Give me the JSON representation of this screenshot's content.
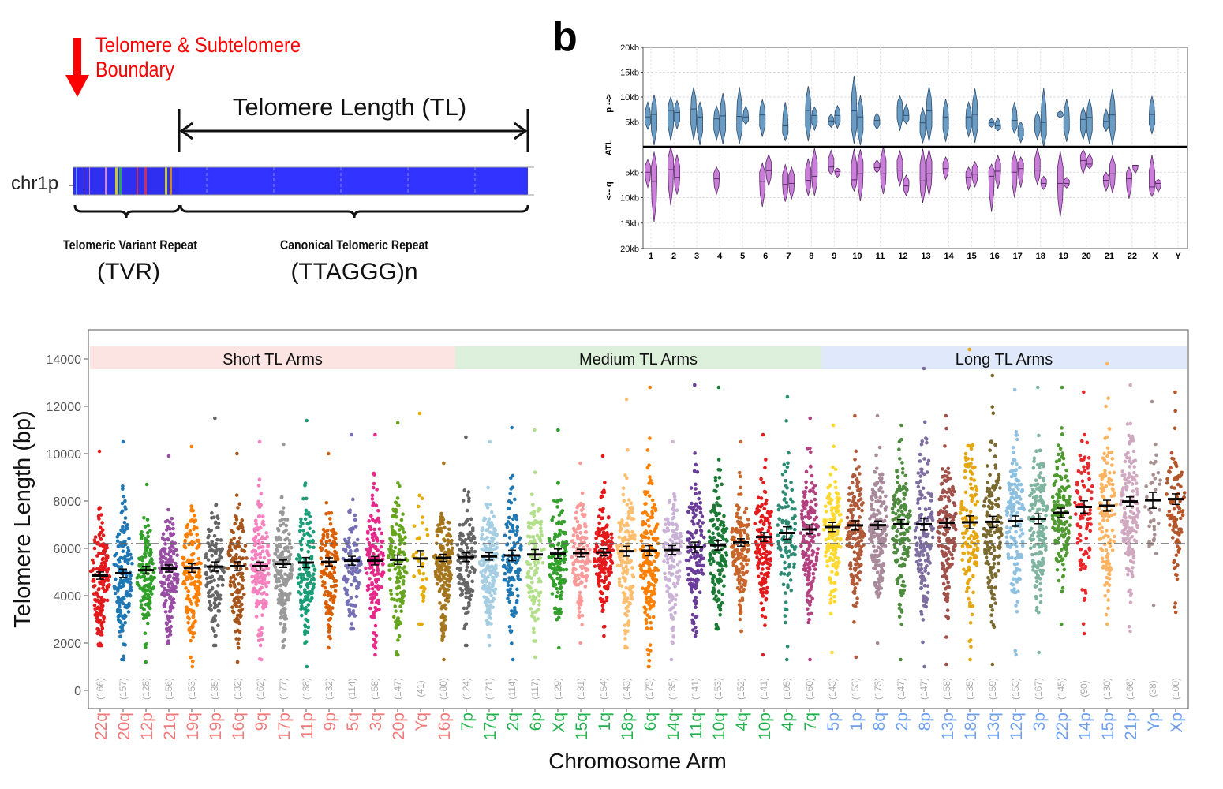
{
  "panel_a": {
    "boundary_label_line1": "Telomere & Subtelomere",
    "boundary_label_line2": "Boundary",
    "tl_label": "Telomere Length (TL)",
    "chrom_label": "chr1p",
    "tvr_label": "Telomeric Variant Repeat",
    "tvr_abbrev": "(TVR)",
    "canonical_label": "Canonical Telomeric Repeat",
    "canonical_abbrev": "(TTAGGG)n",
    "colors": {
      "canonical": "#3333ff",
      "arrow": "#ff0000"
    }
  },
  "panel_b_letter": "b",
  "chart_data": [
    {
      "type": "violin",
      "ylabel_top": "p -->",
      "ylabel_mid": "ATL",
      "ylabel_bottom": "<-- q",
      "yticks_top": [
        "20kb",
        "15kb",
        "10kb",
        "5kb"
      ],
      "yticks_bottom": [
        "5kb",
        "10kb",
        "15kb",
        "20kb"
      ],
      "ylim_kb": [
        0,
        20
      ],
      "grid": true,
      "colors": {
        "p": "#6a9bc3",
        "q": "#c97fd8"
      },
      "chromosomes": [
        {
          "chr": "1",
          "p": [
            [
              3.5,
              9,
              6
            ],
            [
              0.3,
              10.5,
              6.5
            ]
          ],
          "q": [
            [
              2.5,
              8,
              5
            ],
            [
              1,
              14.8,
              6.8
            ]
          ]
        },
        {
          "chr": "2",
          "p": [
            [
              1.2,
              10,
              7.3
            ],
            [
              3.6,
              9.3,
              6.9
            ]
          ],
          "q": [
            [
              0,
              11.5,
              4.5
            ],
            [
              1.5,
              9.4,
              6
            ]
          ]
        },
        {
          "chr": "3",
          "p": [
            [
              1.3,
              12,
              7.6
            ],
            [
              0.3,
              9,
              6
            ]
          ],
          "q": []
        },
        {
          "chr": "4",
          "p": [
            [
              1.3,
              8.2,
              5.6
            ],
            [
              0.5,
              10.8,
              6.2
            ]
          ],
          "q": [
            [
              4,
              9.3,
              6.3
            ]
          ]
        },
        {
          "chr": "5",
          "p": [
            [
              0.6,
              12,
              6.1
            ],
            [
              4.5,
              8.2,
              6
            ]
          ],
          "q": []
        },
        {
          "chr": "6",
          "p": [
            [
              2,
              9.5,
              6.4
            ]
          ],
          "q": [
            [
              3.2,
              11.8,
              6.8
            ],
            [
              1.5,
              7.7,
              4.7
            ]
          ]
        },
        {
          "chr": "7",
          "p": [
            [
              1.2,
              9,
              4.2
            ]
          ],
          "q": [
            [
              3.5,
              10.8,
              7.4
            ],
            [
              4,
              10.2,
              7.2
            ]
          ]
        },
        {
          "chr": "8",
          "p": [
            [
              1.1,
              12.2,
              7.3
            ],
            [
              3.3,
              8,
              6.3
            ]
          ],
          "q": [
            [
              2.3,
              9.6,
              6.6
            ],
            [
              0.3,
              9.6,
              5.8
            ]
          ]
        },
        {
          "chr": "9",
          "p": [
            [
              3.9,
              6.6,
              5.2
            ],
            [
              3.7,
              8.3,
              6.3
            ]
          ],
          "q": [
            [
              0.7,
              5.5,
              4
            ],
            [
              4.2,
              6,
              4.9
            ]
          ]
        },
        {
          "chr": "10",
          "p": [
            [
              0.6,
              14.3,
              7.2
            ],
            [
              0.3,
              10.3,
              6
            ]
          ],
          "q": [
            [
              0.4,
              8.7,
              6.5
            ],
            [
              0.5,
              10.7,
              5.3
            ]
          ]
        },
        {
          "chr": "11",
          "p": [
            [
              3.5,
              6.8,
              5.3
            ]
          ],
          "q": [
            [
              2.6,
              5.1,
              4.1
            ],
            [
              0,
              9.3,
              5.3
            ]
          ]
        },
        {
          "chr": "12",
          "p": [
            [
              3.2,
              10.2,
              8
            ],
            [
              4.6,
              8.5,
              6.3
            ]
          ],
          "q": [
            [
              0.8,
              7.7,
              4.6
            ],
            [
              5.6,
              9.6,
              7.7
            ]
          ]
        },
        {
          "chr": "13",
          "p": [
            [
              0.8,
              7.8,
              4.8
            ],
            [
              1,
              12.2,
              7.2
            ]
          ],
          "q": [
            [
              0.4,
              11,
              6.7
            ],
            [
              0.5,
              9.6,
              5.3
            ]
          ]
        },
        {
          "chr": "14",
          "p": [
            [
              1,
              9.6,
              6
            ]
          ],
          "q": [
            [
              2,
              6.4,
              4.3
            ]
          ]
        },
        {
          "chr": "15",
          "p": [
            [
              2,
              9,
              6
            ],
            [
              0.8,
              11.7,
              6.5
            ]
          ],
          "q": [
            [
              4,
              8.5,
              6
            ],
            [
              2.9,
              7.9,
              5.4
            ]
          ]
        },
        {
          "chr": "16",
          "p": [
            [
              3.9,
              5.7,
              4.8
            ],
            [
              3.2,
              5.8,
              4.2
            ]
          ],
          "q": [
            [
              3.4,
              12.8,
              5.8
            ],
            [
              1.7,
              8.2,
              4.8
            ]
          ]
        },
        {
          "chr": "17",
          "p": [
            [
              2.7,
              9,
              5.3
            ],
            [
              0.8,
              5,
              3.6
            ]
          ],
          "q": [
            [
              1,
              10,
              5
            ],
            [
              2,
              8,
              4.3
            ]
          ]
        },
        {
          "chr": "18",
          "p": [
            [
              1.4,
              7,
              5
            ],
            [
              0,
              11.8,
              4.9
            ]
          ],
          "q": [
            [
              0.3,
              7.4,
              4.6
            ],
            [
              5.8,
              8.4,
              7.2
            ]
          ]
        },
        {
          "chr": "19",
          "p": [
            [
              5.8,
              7.2,
              6.6
            ],
            [
              1,
              9.6,
              5.8
            ]
          ],
          "q": [
            [
              0.9,
              13.8,
              7.2
            ],
            [
              6,
              8.1,
              7.2
            ]
          ]
        },
        {
          "chr": "20",
          "p": [
            [
              1.4,
              8,
              5.5
            ],
            [
              0.5,
              9.6,
              5.9
            ]
          ],
          "q": [
            [
              0.6,
              5.3,
              2.7
            ],
            [
              1.4,
              4.3,
              3.4
            ]
          ]
        },
        {
          "chr": "21",
          "p": [
            [
              3.1,
              7.6,
              5.1
            ],
            [
              0.3,
              11.6,
              6.4
            ]
          ],
          "q": [
            [
              5,
              8.7,
              6.6
            ],
            [
              1.8,
              9.1,
              5.3
            ]
          ]
        },
        {
          "chr": "22",
          "p": [],
          "q": [
            [
              4,
              10.2,
              6.3
            ],
            [
              3.6,
              5.2,
              3.7
            ]
          ]
        },
        {
          "chr": "X",
          "p": [
            [
              2.6,
              10.2,
              6.5
            ]
          ],
          "q": [
            [
              1.6,
              9.8,
              7.9
            ],
            [
              6.4,
              8.9,
              7.2
            ]
          ]
        },
        {
          "chr": "Y",
          "p": [],
          "q": []
        }
      ]
    },
    {
      "type": "scatter",
      "xlabel": "Chromosome Arm",
      "ylabel": "Telomere Length (bp)",
      "ylim": [
        -770,
        15230
      ],
      "yticks": [
        0,
        2000,
        4000,
        6000,
        8000,
        10000,
        12000,
        14000
      ],
      "reference_line": 6200,
      "grid": false,
      "groups": [
        {
          "name": "Short TL Arms",
          "color": "#fce4e2",
          "label_color": "#f07a7a"
        },
        {
          "name": "Medium TL Arms",
          "color": "#dcf0dc",
          "label_color": "#22b14c"
        },
        {
          "name": "Long TL Arms",
          "color": "#e0e8fb",
          "label_color": "#6fa0f0"
        }
      ],
      "arms": [
        {
          "arm": "22q",
          "n": 166,
          "mean": 4850,
          "min": 1900,
          "max": 10100,
          "color": "#e31a1c",
          "group": 0
        },
        {
          "arm": "20q",
          "n": 157,
          "mean": 4950,
          "min": 1300,
          "max": 10500,
          "color": "#1f78b4",
          "group": 0
        },
        {
          "arm": "12p",
          "n": 128,
          "mean": 5080,
          "min": 1200,
          "max": 8700,
          "color": "#33a02c",
          "group": 0
        },
        {
          "arm": "21q",
          "n": 156,
          "mean": 5150,
          "min": 2000,
          "max": 9900,
          "color": "#984ea3",
          "group": 0
        },
        {
          "arm": "19q",
          "n": 153,
          "mean": 5170,
          "min": 1000,
          "max": 10300,
          "color": "#ff7f00",
          "group": 0
        },
        {
          "arm": "19p",
          "n": 135,
          "mean": 5230,
          "min": 1900,
          "max": 11500,
          "color": "#666666",
          "group": 0
        },
        {
          "arm": "16q",
          "n": 132,
          "mean": 5250,
          "min": 1200,
          "max": 10000,
          "color": "#a6561c",
          "group": 0
        },
        {
          "arm": "9q",
          "n": 162,
          "mean": 5250,
          "min": 1300,
          "max": 10500,
          "color": "#f781bf",
          "group": 0
        },
        {
          "arm": "17p",
          "n": 177,
          "mean": 5350,
          "min": 1800,
          "max": 10400,
          "color": "#999999",
          "group": 0
        },
        {
          "arm": "11p",
          "n": 138,
          "mean": 5400,
          "min": 1000,
          "max": 11400,
          "color": "#1b9e77",
          "group": 0
        },
        {
          "arm": "9p",
          "n": 132,
          "mean": 5430,
          "min": 1800,
          "max": 10000,
          "color": "#d95f02",
          "group": 0
        },
        {
          "arm": "5q",
          "n": 114,
          "mean": 5480,
          "min": 2600,
          "max": 10800,
          "color": "#7570b3",
          "group": 0
        },
        {
          "arm": "3q",
          "n": 158,
          "mean": 5480,
          "min": 1500,
          "max": 10800,
          "color": "#e7298a",
          "group": 0
        },
        {
          "arm": "20p",
          "n": 147,
          "mean": 5520,
          "min": 1500,
          "max": 11300,
          "color": "#66a61e",
          "group": 0
        },
        {
          "arm": "Yq",
          "n": 41,
          "mean": 5570,
          "min": 2800,
          "max": 11700,
          "color": "#e6ab02",
          "group": 0
        },
        {
          "arm": "16p",
          "n": 180,
          "mean": 5600,
          "min": 1300,
          "max": 9600,
          "color": "#a6761d",
          "group": 0
        },
        {
          "arm": "7p",
          "n": 124,
          "mean": 5630,
          "min": 1900,
          "max": 10700,
          "color": "#666666",
          "group": 1
        },
        {
          "arm": "17q",
          "n": 171,
          "mean": 5660,
          "min": 1900,
          "max": 10500,
          "color": "#a6cee3",
          "group": 1
        },
        {
          "arm": "2q",
          "n": 114,
          "mean": 5700,
          "min": 1300,
          "max": 11100,
          "color": "#1f78b4",
          "group": 1
        },
        {
          "arm": "6p",
          "n": 117,
          "mean": 5740,
          "min": 1400,
          "max": 11000,
          "color": "#b2df8a",
          "group": 1
        },
        {
          "arm": "Xq",
          "n": 129,
          "mean": 5780,
          "min": 1800,
          "max": 11000,
          "color": "#33a02c",
          "group": 1
        },
        {
          "arm": "15q",
          "n": 131,
          "mean": 5800,
          "min": 2000,
          "max": 9600,
          "color": "#fb9a99",
          "group": 1
        },
        {
          "arm": "1q",
          "n": 154,
          "mean": 5830,
          "min": 2300,
          "max": 9900,
          "color": "#e31a1c",
          "group": 1
        },
        {
          "arm": "18p",
          "n": 143,
          "mean": 5880,
          "min": 1800,
          "max": 12300,
          "color": "#fdbf6f",
          "group": 1
        },
        {
          "arm": "6q",
          "n": 175,
          "mean": 5900,
          "min": 1000,
          "max": 12800,
          "color": "#ff7f00",
          "group": 1
        },
        {
          "arm": "14q",
          "n": 135,
          "mean": 5930,
          "min": 1300,
          "max": 10500,
          "color": "#cab2d6",
          "group": 1
        },
        {
          "arm": "11q",
          "n": 141,
          "mean": 6050,
          "min": 2300,
          "max": 12900,
          "color": "#6a3d9a",
          "group": 1
        },
        {
          "arm": "10q",
          "n": 153,
          "mean": 6130,
          "min": 2600,
          "max": 12800,
          "color": "#1b7a35",
          "group": 1
        },
        {
          "arm": "4q",
          "n": 152,
          "mean": 6250,
          "min": 2500,
          "max": 10500,
          "color": "#c8652a",
          "group": 1
        },
        {
          "arm": "10p",
          "n": 141,
          "mean": 6480,
          "min": 1500,
          "max": 10800,
          "color": "#e41a1c",
          "group": 1
        },
        {
          "arm": "4p",
          "n": 105,
          "mean": 6650,
          "min": 1300,
          "max": 12400,
          "color": "#2e8b73",
          "group": 1
        },
        {
          "arm": "7q",
          "n": 160,
          "mean": 6800,
          "min": 1300,
          "max": 11500,
          "color": "#b2417f",
          "group": 1
        },
        {
          "arm": "5p",
          "n": 143,
          "mean": 6900,
          "min": 1600,
          "max": 11200,
          "color": "#ffd92f",
          "group": 2
        },
        {
          "arm": "1p",
          "n": 153,
          "mean": 6970,
          "min": 1400,
          "max": 11600,
          "color": "#b15a3a",
          "group": 2
        },
        {
          "arm": "8q",
          "n": 173,
          "mean": 6980,
          "min": 2000,
          "max": 11600,
          "color": "#a88a9a",
          "group": 2
        },
        {
          "arm": "2p",
          "n": 147,
          "mean": 7020,
          "min": 1300,
          "max": 11200,
          "color": "#4e8b3e",
          "group": 2
        },
        {
          "arm": "8p",
          "n": 147,
          "mean": 7020,
          "min": 1000,
          "max": 13600,
          "color": "#7e6ea0",
          "group": 2
        },
        {
          "arm": "13p",
          "n": 158,
          "mean": 7080,
          "min": 1100,
          "max": 11600,
          "color": "#a0524a",
          "group": 2
        },
        {
          "arm": "18q",
          "n": 135,
          "mean": 7100,
          "min": 1300,
          "max": 14400,
          "color": "#e6a610",
          "group": 2
        },
        {
          "arm": "13q",
          "n": 159,
          "mean": 7120,
          "min": 1100,
          "max": 13300,
          "color": "#7a6a30",
          "group": 2
        },
        {
          "arm": "12q",
          "n": 153,
          "mean": 7150,
          "min": 1500,
          "max": 12700,
          "color": "#8ec0e0",
          "group": 2
        },
        {
          "arm": "3p",
          "n": 167,
          "mean": 7250,
          "min": 1600,
          "max": 12800,
          "color": "#7fb5a0",
          "group": 2
        },
        {
          "arm": "22p",
          "n": 145,
          "mean": 7500,
          "min": 2800,
          "max": 12800,
          "color": "#4e9a30",
          "group": 2
        },
        {
          "arm": "14p",
          "n": 90,
          "mean": 7750,
          "min": 2400,
          "max": 12600,
          "color": "#e8282a",
          "group": 2
        },
        {
          "arm": "15p",
          "n": 130,
          "mean": 7800,
          "min": 2800,
          "max": 13800,
          "color": "#fdb462",
          "group": 2
        },
        {
          "arm": "21p",
          "n": 166,
          "mean": 7980,
          "min": 2500,
          "max": 12900,
          "color": "#d0a8c0",
          "group": 2
        },
        {
          "arm": "Yp",
          "n": 38,
          "mean": 8030,
          "min": 3600,
          "max": 12200,
          "color": "#a89090",
          "group": 2
        },
        {
          "arm": "Xp",
          "n": 100,
          "mean": 8080,
          "min": 3300,
          "max": 12600,
          "color": "#b5562a",
          "group": 2
        }
      ]
    }
  ]
}
